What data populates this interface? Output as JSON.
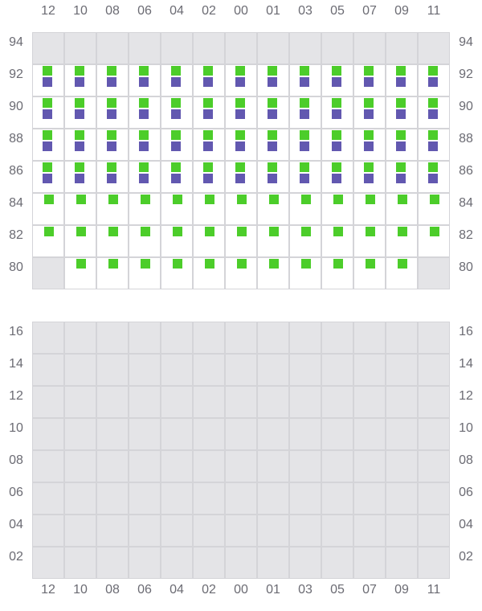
{
  "columns": [
    "12",
    "10",
    "08",
    "06",
    "04",
    "02",
    "00",
    "01",
    "03",
    "05",
    "07",
    "09",
    "11"
  ],
  "colors": {
    "green": "#4ccd2a",
    "purple": "#6258b0",
    "disabled": "#e4e4e7",
    "grid": "#d4d4d8"
  },
  "legend_codes": {
    "x": "disabled",
    "g": "green marker",
    "gp": "green + purple markers",
    "": "empty"
  },
  "top_panel": {
    "rows": [
      {
        "label": "94",
        "cells": [
          "x",
          "x",
          "x",
          "x",
          "x",
          "x",
          "x",
          "x",
          "x",
          "x",
          "x",
          "x",
          "x"
        ]
      },
      {
        "label": "92",
        "cells": [
          "gp",
          "gp",
          "gp",
          "gp",
          "gp",
          "gp",
          "gp",
          "gp",
          "gp",
          "gp",
          "gp",
          "gp",
          "gp"
        ]
      },
      {
        "label": "90",
        "cells": [
          "gp",
          "gp",
          "gp",
          "gp",
          "gp",
          "gp",
          "gp",
          "gp",
          "gp",
          "gp",
          "gp",
          "gp",
          "gp"
        ]
      },
      {
        "label": "88",
        "cells": [
          "gp",
          "gp",
          "gp",
          "gp",
          "gp",
          "gp",
          "gp",
          "gp",
          "gp",
          "gp",
          "gp",
          "gp",
          "gp"
        ]
      },
      {
        "label": "86",
        "cells": [
          "gp",
          "gp",
          "gp",
          "gp",
          "gp",
          "gp",
          "gp",
          "gp",
          "gp",
          "gp",
          "gp",
          "gp",
          "gp"
        ]
      },
      {
        "label": "84",
        "cells": [
          "g",
          "g",
          "g",
          "g",
          "g",
          "g",
          "g",
          "g",
          "g",
          "g",
          "g",
          "g",
          "g"
        ]
      },
      {
        "label": "82",
        "cells": [
          "g",
          "g",
          "g",
          "g",
          "g",
          "g",
          "g",
          "g",
          "g",
          "g",
          "g",
          "g",
          "g"
        ]
      },
      {
        "label": "80",
        "cells": [
          "x",
          "g",
          "g",
          "g",
          "g",
          "g",
          "g",
          "g",
          "g",
          "g",
          "g",
          "g",
          "x"
        ]
      }
    ]
  },
  "bottom_panel": {
    "rows": [
      {
        "label": "16",
        "cells": [
          "x",
          "x",
          "x",
          "x",
          "x",
          "x",
          "x",
          "x",
          "x",
          "x",
          "x",
          "x",
          "x"
        ]
      },
      {
        "label": "14",
        "cells": [
          "x",
          "x",
          "x",
          "x",
          "x",
          "x",
          "x",
          "x",
          "x",
          "x",
          "x",
          "x",
          "x"
        ]
      },
      {
        "label": "12",
        "cells": [
          "x",
          "x",
          "x",
          "x",
          "x",
          "x",
          "x",
          "x",
          "x",
          "x",
          "x",
          "x",
          "x"
        ]
      },
      {
        "label": "10",
        "cells": [
          "x",
          "x",
          "x",
          "x",
          "x",
          "x",
          "x",
          "x",
          "x",
          "x",
          "x",
          "x",
          "x"
        ]
      },
      {
        "label": "08",
        "cells": [
          "x",
          "x",
          "x",
          "x",
          "x",
          "x",
          "x",
          "x",
          "x",
          "x",
          "x",
          "x",
          "x"
        ]
      },
      {
        "label": "06",
        "cells": [
          "x",
          "x",
          "x",
          "x",
          "x",
          "x",
          "x",
          "x",
          "x",
          "x",
          "x",
          "x",
          "x"
        ]
      },
      {
        "label": "04",
        "cells": [
          "x",
          "x",
          "x",
          "x",
          "x",
          "x",
          "x",
          "x",
          "x",
          "x",
          "x",
          "x",
          "x"
        ]
      },
      {
        "label": "02",
        "cells": [
          "x",
          "x",
          "x",
          "x",
          "x",
          "x",
          "x",
          "x",
          "x",
          "x",
          "x",
          "x",
          "x"
        ]
      }
    ]
  }
}
